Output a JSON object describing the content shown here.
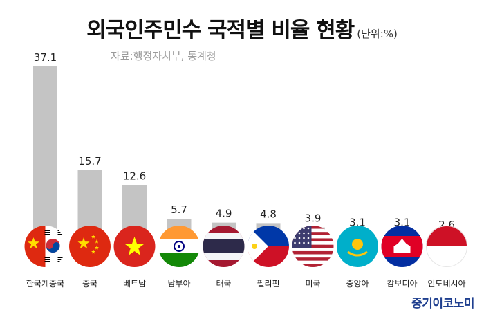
{
  "header": {
    "title": "외국인주민수 국적별 비율 현황",
    "unit": "(단위:%)",
    "source": "자료:행정자치부, 통계청"
  },
  "logo": "중기이코노미",
  "chart_data": {
    "type": "bar",
    "categories": [
      "한국계중국",
      "중국",
      "베트남",
      "남부아",
      "태국",
      "필리핀",
      "미국",
      "중앙아",
      "캄보디아",
      "인도네시아"
    ],
    "values": [
      37.1,
      15.7,
      12.6,
      5.7,
      4.9,
      4.8,
      3.9,
      3.1,
      3.1,
      2.6
    ],
    "data_labels": [
      "37.1",
      "15.7",
      "12.6",
      "5.7",
      "4.9",
      "4.8",
      "3.9",
      "3.1",
      "3.1",
      "2.6"
    ],
    "title": "외국인주민수 국적별 비율 현황",
    "ylabel": "",
    "xlabel": "",
    "flags": [
      "china",
      "china",
      "vietnam",
      "india",
      "thailand",
      "philippines",
      "usa",
      "kazakhstan",
      "cambodia",
      "indonesia"
    ],
    "bar_color": "#c4c4c4",
    "grid": false,
    "legend": "none"
  }
}
